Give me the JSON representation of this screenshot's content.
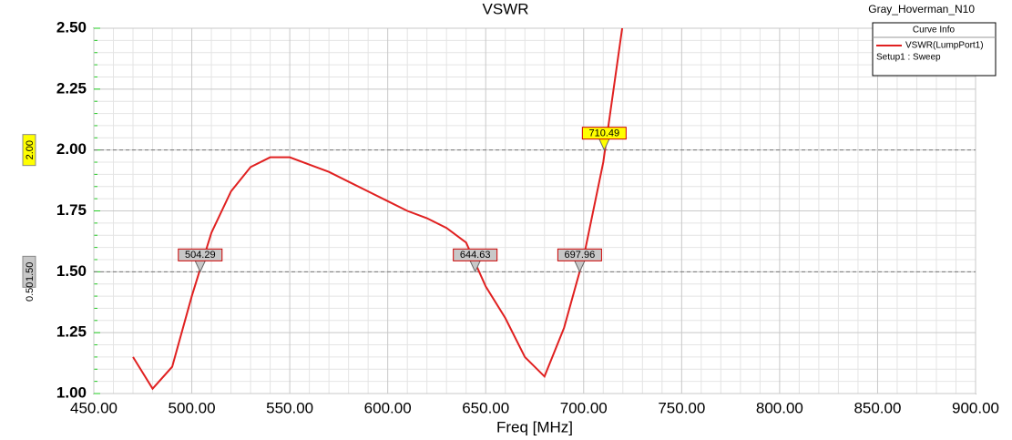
{
  "chart_data": {
    "type": "line",
    "title": "VSWR",
    "design_name": "Gray_Hoverman_N10",
    "x_label": "Freq [MHz]",
    "legend_title": "Curve Info",
    "legend_note": "Setup1 : Sweep",
    "x": [
      470,
      480,
      490,
      500,
      510,
      520,
      530,
      540,
      550,
      560,
      570,
      580,
      590,
      600,
      610,
      620,
      630,
      640,
      650,
      660,
      670,
      680,
      690,
      700,
      710,
      720
    ],
    "series": [
      {
        "name": "VSWR(LumpPort1)",
        "color": "#e02020",
        "values": [
          1.15,
          1.02,
          1.11,
          1.4,
          1.66,
          1.83,
          1.93,
          1.97,
          1.97,
          1.94,
          1.91,
          1.87,
          1.83,
          1.79,
          1.75,
          1.72,
          1.68,
          1.62,
          1.44,
          1.31,
          1.15,
          1.07,
          1.27,
          1.56,
          1.95,
          2.52
        ]
      }
    ],
    "xlim": [
      450,
      900
    ],
    "xticks": [
      {
        "value": 450,
        "label": "450.00"
      },
      {
        "value": 500,
        "label": "500.00"
      },
      {
        "value": 550,
        "label": "550.00"
      },
      {
        "value": 600,
        "label": "600.00"
      },
      {
        "value": 650,
        "label": "650.00"
      },
      {
        "value": 700,
        "label": "700.00"
      },
      {
        "value": 750,
        "label": "750.00"
      },
      {
        "value": 800,
        "label": "800.00"
      },
      {
        "value": 850,
        "label": "850.00"
      },
      {
        "value": 900,
        "label": "900.00"
      }
    ],
    "ylim": [
      1,
      2.5
    ],
    "yticks": [
      {
        "value": 1,
        "label": "1.00"
      },
      {
        "value": 1.25,
        "label": "1.25"
      },
      {
        "value": 1.5,
        "label": "1.50"
      },
      {
        "value": 1.75,
        "label": "1.75"
      },
      {
        "value": 2,
        "label": "2.00"
      },
      {
        "value": 2.25,
        "label": "2.25"
      },
      {
        "value": 2.5,
        "label": "2.50"
      }
    ],
    "grid": true,
    "hlines": [
      {
        "value": 1.5,
        "label": "1.50",
        "color": "#c8c8c8"
      },
      {
        "value": 2,
        "label": "2.00",
        "color": "#ffff00"
      }
    ],
    "delta_label": {
      "value": 0.5,
      "label": "0.50"
    },
    "markers": [
      {
        "x": 504.29,
        "y": 1.5,
        "color": "#c8c8c8"
      },
      {
        "x": 644.63,
        "y": 1.5,
        "color": "#c8c8c8"
      },
      {
        "x": 697.96,
        "y": 1.5,
        "color": "#c8c8c8"
      },
      {
        "x": 710.49,
        "y": 2,
        "color": "#ffff00"
      }
    ]
  }
}
